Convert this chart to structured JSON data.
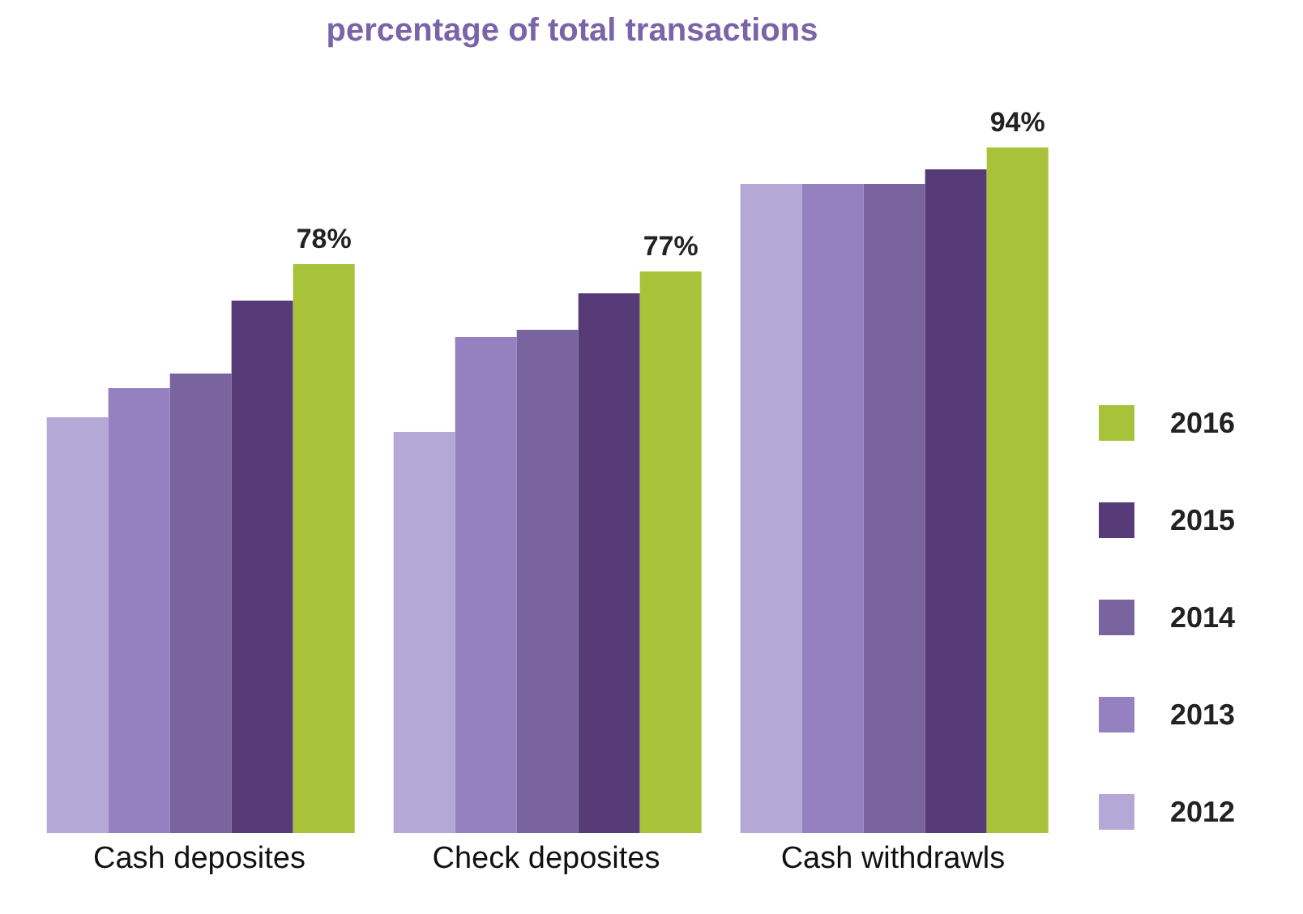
{
  "chart_data": {
    "type": "bar",
    "title": "percentage of total transactions",
    "categories": [
      "Cash deposites",
      "Check deposites",
      "Cash withdrawls"
    ],
    "series": [
      {
        "name": "2012",
        "color": "#b3a8d6",
        "values": [
          57,
          55,
          89
        ]
      },
      {
        "name": "2013",
        "color": "#9580c0",
        "values": [
          61,
          68,
          89
        ]
      },
      {
        "name": "2014",
        "color": "#7a64a0",
        "values": [
          63,
          69,
          89
        ]
      },
      {
        "name": "2015",
        "color": "#573a78",
        "values": [
          73,
          74,
          91
        ]
      },
      {
        "name": "2016",
        "color": "#a8c23a",
        "values": [
          78,
          77,
          94
        ],
        "value_labels": [
          "78%",
          "77%",
          "94%"
        ]
      }
    ],
    "tick_labels": "x",
    "legend": "right"
  }
}
